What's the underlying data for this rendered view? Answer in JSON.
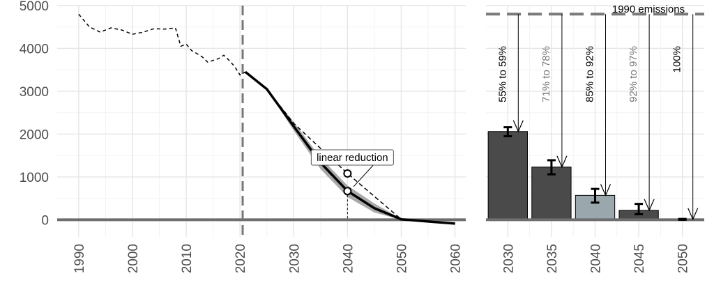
{
  "chart_data": [
    {
      "type": "line",
      "title": "",
      "xlabel": "",
      "ylabel": "",
      "xlim": [
        1986,
        2062
      ],
      "ylim": [
        -400,
        5000
      ],
      "yticks": [
        0,
        1000,
        2000,
        3000,
        4000,
        5000
      ],
      "xticks": [
        1990,
        2000,
        2010,
        2020,
        2030,
        2040,
        2050,
        2060
      ],
      "grid": true,
      "legend": "none",
      "vline": {
        "x": 2020.5,
        "style": "dashed"
      },
      "series": [
        {
          "style": "dashed-thin",
          "x": [
            1990,
            1992,
            1994,
            1996,
            1998,
            2000,
            2002,
            2004,
            2006,
            2008,
            2009,
            2010,
            2011,
            2012,
            2013,
            2014,
            2015,
            2016,
            2017,
            2018,
            2019,
            2020,
            2021
          ],
          "y": [
            4800,
            4500,
            4380,
            4480,
            4430,
            4330,
            4380,
            4460,
            4450,
            4480,
            4050,
            4100,
            3950,
            3880,
            3800,
            3680,
            3720,
            3760,
            3840,
            3720,
            3580,
            3380,
            3450
          ]
        },
        {
          "style": "solid-thick",
          "x": [
            2021,
            2025,
            2030,
            2035,
            2040,
            2045,
            2050,
            2055,
            2060
          ],
          "y": [
            3450,
            3050,
            2180,
            1330,
            670,
            270,
            10,
            -40,
            -90
          ]
        },
        {
          "style": "dashed-linear",
          "x": [
            2025,
            2030,
            2040,
            2050
          ],
          "y": [
            3050,
            2250,
            1080,
            10
          ]
        }
      ],
      "band": {
        "x": [
          2025,
          2030,
          2035,
          2040,
          2045,
          2050
        ],
        "upper": [
          3050,
          2280,
          1450,
          800,
          380,
          20
        ],
        "lower": [
          3050,
          2080,
          1180,
          530,
          170,
          0
        ]
      },
      "points": [
        {
          "x": 2040,
          "y": 1080
        },
        {
          "x": 2040,
          "y": 670
        }
      ],
      "annotations": [
        {
          "text": "linear reduction"
        }
      ]
    },
    {
      "type": "bar",
      "title": "",
      "xlabel": "",
      "ylabel": "",
      "ylim": [
        -400,
        5000
      ],
      "categories": [
        "2030",
        "2035",
        "2040",
        "2045",
        "2050"
      ],
      "values": [
        2060,
        1230,
        570,
        220,
        10
      ],
      "error_low": [
        1950,
        1060,
        400,
        130,
        0
      ],
      "error_high": [
        2160,
        1390,
        720,
        370,
        20
      ],
      "bar_colors": [
        "#4a4a4a",
        "#4a4a4a",
        "#9aa7ad",
        "#4a4a4a",
        "#4a4a4a"
      ],
      "reference_line": {
        "value": 4800,
        "label": "1990 emissions"
      },
      "reduction_labels": [
        "55% to 59%",
        "71% to 78%",
        "85% to 92%",
        "92% to 97%",
        "100%"
      ],
      "reduction_label_colors": [
        "#000000",
        "#777777",
        "#000000",
        "#777777",
        "#000000"
      ]
    }
  ]
}
